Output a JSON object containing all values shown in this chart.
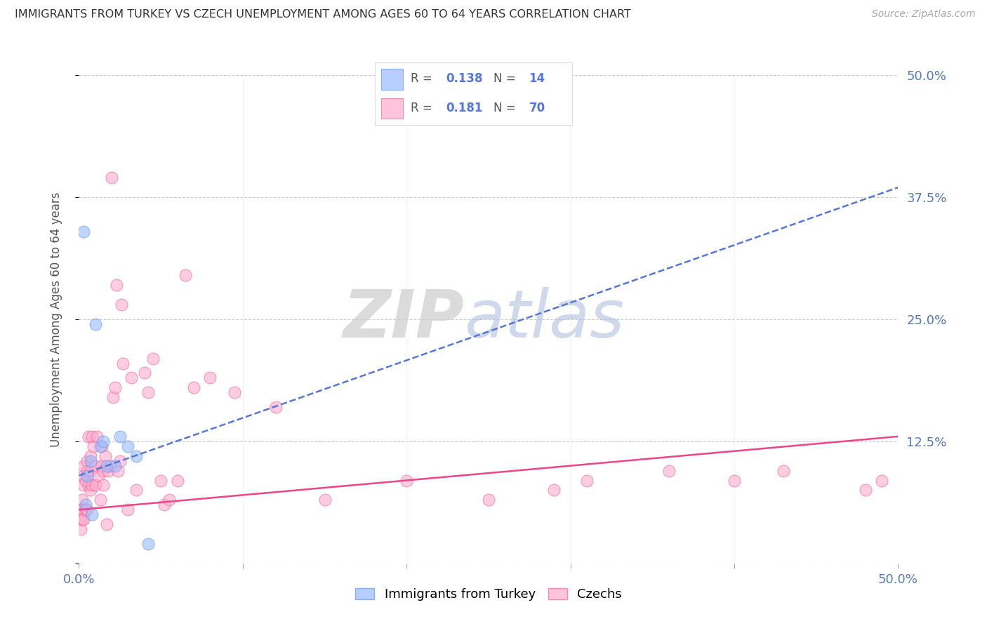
{
  "title": "IMMIGRANTS FROM TURKEY VS CZECH UNEMPLOYMENT AMONG AGES 60 TO 64 YEARS CORRELATION CHART",
  "source": "Source: ZipAtlas.com",
  "ylabel": "Unemployment Among Ages 60 to 64 years",
  "xlim": [
    0.0,
    0.5
  ],
  "ylim": [
    0.0,
    0.5
  ],
  "yticks": [
    0.0,
    0.125,
    0.25,
    0.375,
    0.5
  ],
  "ytick_labels_right": [
    "",
    "12.5%",
    "25.0%",
    "37.5%",
    "50.0%"
  ],
  "grid_color": "#cccccc",
  "bg_color": "#ffffff",
  "series1_color": "#99bbff",
  "series1_edge": "#6699ee",
  "series2_color": "#ffaacc",
  "series2_edge": "#ee6699",
  "trendline1_color": "#5577dd",
  "trendline2_color": "#ee4488",
  "legend_label1": "Immigrants from Turkey",
  "legend_label2": "Czechs",
  "R1": "0.138",
  "N1": "14",
  "R2": "0.181",
  "N2": "70",
  "trendline1_x0": 0.0,
  "trendline1_y0": 0.09,
  "trendline1_x1": 0.5,
  "trendline1_y1": 0.385,
  "trendline2_x0": 0.0,
  "trendline2_y0": 0.055,
  "trendline2_x1": 0.5,
  "trendline2_y1": 0.13,
  "series1_x": [
    0.003,
    0.004,
    0.005,
    0.007,
    0.008,
    0.01,
    0.013,
    0.015,
    0.017,
    0.022,
    0.025,
    0.03,
    0.035,
    0.042
  ],
  "series1_y": [
    0.34,
    0.06,
    0.09,
    0.105,
    0.05,
    0.245,
    0.12,
    0.125,
    0.1,
    0.1,
    0.13,
    0.12,
    0.11,
    0.02
  ],
  "series2_x": [
    0.001,
    0.001,
    0.001,
    0.002,
    0.002,
    0.002,
    0.002,
    0.003,
    0.003,
    0.003,
    0.003,
    0.004,
    0.004,
    0.005,
    0.005,
    0.005,
    0.006,
    0.006,
    0.007,
    0.007,
    0.007,
    0.008,
    0.008,
    0.009,
    0.01,
    0.01,
    0.011,
    0.012,
    0.013,
    0.014,
    0.014,
    0.015,
    0.015,
    0.016,
    0.017,
    0.018,
    0.019,
    0.02,
    0.021,
    0.022,
    0.023,
    0.024,
    0.025,
    0.026,
    0.027,
    0.03,
    0.032,
    0.035,
    0.04,
    0.042,
    0.045,
    0.05,
    0.052,
    0.055,
    0.06,
    0.065,
    0.07,
    0.08,
    0.095,
    0.12,
    0.15,
    0.2,
    0.25,
    0.29,
    0.31,
    0.36,
    0.4,
    0.43,
    0.48,
    0.49
  ],
  "series2_y": [
    0.055,
    0.045,
    0.035,
    0.065,
    0.055,
    0.055,
    0.045,
    0.1,
    0.09,
    0.08,
    0.045,
    0.085,
    0.055,
    0.105,
    0.095,
    0.055,
    0.13,
    0.08,
    0.11,
    0.095,
    0.075,
    0.13,
    0.08,
    0.12,
    0.1,
    0.08,
    0.13,
    0.09,
    0.065,
    0.12,
    0.1,
    0.095,
    0.08,
    0.11,
    0.04,
    0.095,
    0.1,
    0.395,
    0.17,
    0.18,
    0.285,
    0.095,
    0.105,
    0.265,
    0.205,
    0.055,
    0.19,
    0.075,
    0.195,
    0.175,
    0.21,
    0.085,
    0.06,
    0.065,
    0.085,
    0.295,
    0.18,
    0.19,
    0.175,
    0.16,
    0.065,
    0.085,
    0.065,
    0.075,
    0.085,
    0.095,
    0.085,
    0.095,
    0.075,
    0.085
  ]
}
